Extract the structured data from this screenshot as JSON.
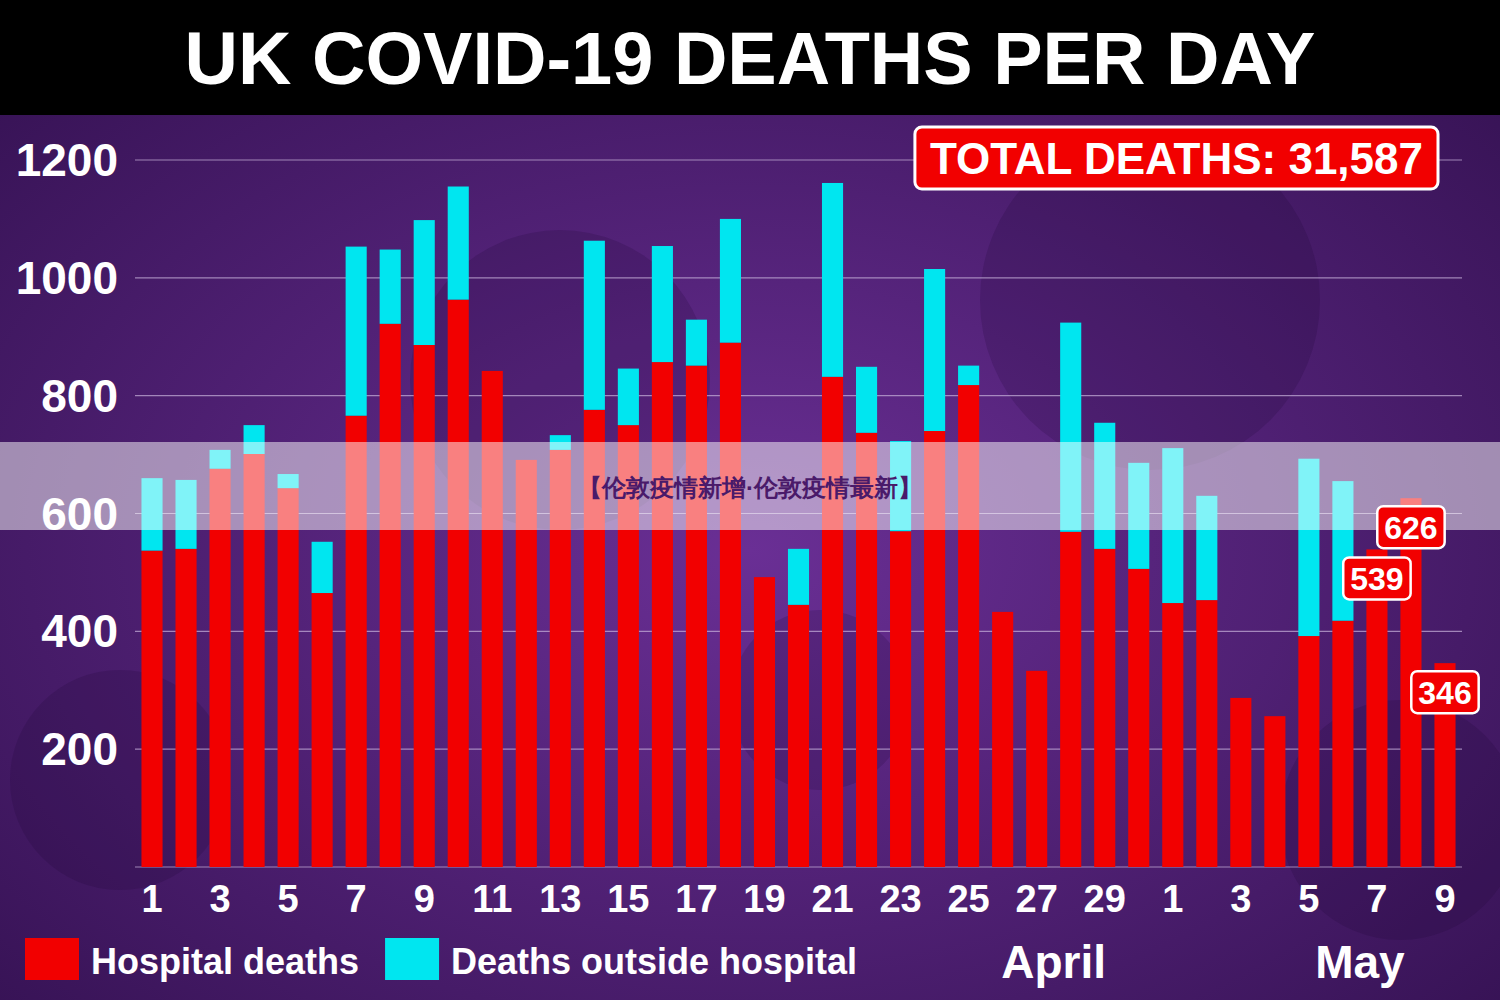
{
  "chart_data": {
    "type": "bar",
    "title": "UK COVID-19 DEATHS PER DAY",
    "total_label": "TOTAL DEATHS: 31,587",
    "watermark": "【伦敦疫情新增·伦敦疫情最新】",
    "categories": [
      "1",
      null,
      "3",
      null,
      "5",
      null,
      "7",
      null,
      "9",
      null,
      "11",
      null,
      "13",
      null,
      "15",
      null,
      "17",
      null,
      "19",
      null,
      "21",
      null,
      "23",
      null,
      "25",
      null,
      "27",
      null,
      "29",
      null,
      "1",
      null,
      "3",
      null,
      "5",
      null,
      "7",
      null,
      "9"
    ],
    "groups": [
      {
        "label": "April",
        "start": 0,
        "end": 29
      },
      {
        "label": "May",
        "start": 30,
        "end": 38
      }
    ],
    "series": [
      {
        "name": "Hospital deaths",
        "color": "#f20000",
        "values": [
          537,
          540,
          676,
          701,
          643,
          465,
          766,
          922,
          886,
          963,
          842,
          691,
          708,
          776,
          750,
          857,
          851,
          890,
          492,
          445,
          832,
          737,
          570,
          740,
          818,
          433,
          333,
          569,
          540,
          506,
          448,
          453,
          287,
          256,
          392,
          418,
          539,
          626,
          346
        ]
      },
      {
        "name": "Deaths outside hospital",
        "color": "#00e6f0",
        "values": [
          123,
          117,
          32,
          49,
          24,
          87,
          287,
          126,
          212,
          192,
          0,
          0,
          25,
          287,
          96,
          197,
          78,
          210,
          0,
          95,
          329,
          112,
          153,
          275,
          33,
          0,
          0,
          355,
          214,
          180,
          263,
          177,
          0,
          0,
          301,
          237,
          0,
          0,
          0
        ]
      }
    ],
    "annotations": [
      {
        "index": 36,
        "value": 539
      },
      {
        "index": 37,
        "value": 626
      },
      {
        "index": 38,
        "value": 346
      }
    ],
    "stacked": true,
    "grid": true,
    "legend": "bottom",
    "ylim": [
      0,
      1200
    ],
    "yticks": [
      200,
      400,
      600,
      800,
      1000,
      1200
    ]
  }
}
